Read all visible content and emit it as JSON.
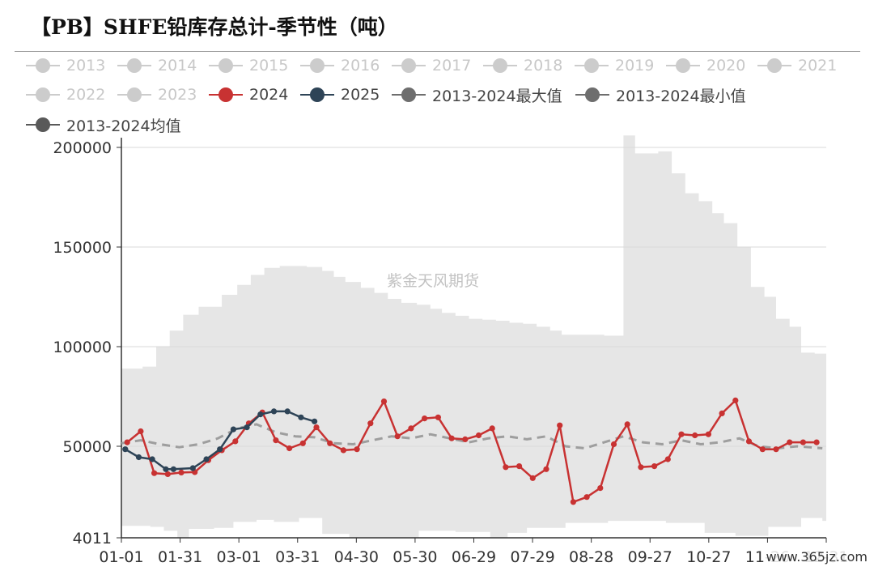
{
  "title": "【PB】SHFE铅库存总计-季节性（吨）",
  "watermark": "紫金天风期货",
  "site": "www.365jz.com",
  "chart_data": {
    "type": "line",
    "title": "【PB】SHFE铅库存总计-季节性（吨）",
    "xlabel": "",
    "ylabel": "",
    "x_tick_labels": [
      "01-01",
      "01-31",
      "03-01",
      "03-31",
      "04-30",
      "05-30",
      "06-29",
      "07-29",
      "08-28",
      "09-27",
      "10-27",
      "11-26",
      "12-31"
    ],
    "y_tick_labels": [
      "4011",
      "50000",
      "100000",
      "150000",
      "200000"
    ],
    "ylim": [
      4011,
      207000
    ],
    "xlim": [
      0,
      365
    ],
    "grid": true,
    "legend_position": "top",
    "legend": [
      {
        "name": "2013",
        "color": "#cccccc",
        "active": false
      },
      {
        "name": "2014",
        "color": "#cccccc",
        "active": false
      },
      {
        "name": "2015",
        "color": "#cccccc",
        "active": false
      },
      {
        "name": "2016",
        "color": "#cccccc",
        "active": false
      },
      {
        "name": "2017",
        "color": "#cccccc",
        "active": false
      },
      {
        "name": "2018",
        "color": "#cccccc",
        "active": false
      },
      {
        "name": "2019",
        "color": "#cccccc",
        "active": false
      },
      {
        "name": "2020",
        "color": "#cccccc",
        "active": false
      },
      {
        "name": "2021",
        "color": "#cccccc",
        "active": false
      },
      {
        "name": "2022",
        "color": "#cccccc",
        "active": false
      },
      {
        "name": "2023",
        "color": "#cccccc",
        "active": false
      },
      {
        "name": "2024",
        "color": "#c83232",
        "active": true
      },
      {
        "name": "2025",
        "color": "#2e4457",
        "active": true
      },
      {
        "name": "2013-2024最大值",
        "color": "#6e6e6e",
        "active": true
      },
      {
        "name": "2013-2024最小值",
        "color": "#6e6e6e",
        "active": true
      },
      {
        "name": "2013-2024均值",
        "color": "#595959",
        "active": true
      }
    ],
    "band": {
      "name": "2013-2024",
      "color": "#e6e6e6",
      "max": [
        [
          0,
          89000
        ],
        [
          11,
          90000
        ],
        [
          18,
          100000
        ],
        [
          25,
          108000
        ],
        [
          32,
          116000
        ],
        [
          40,
          120000
        ],
        [
          52,
          126000
        ],
        [
          60,
          131000
        ],
        [
          67,
          136000
        ],
        [
          74,
          139500
        ],
        [
          82,
          140500
        ],
        [
          96,
          140000
        ],
        [
          104,
          138000
        ],
        [
          110,
          135000
        ],
        [
          116,
          132500
        ],
        [
          124,
          129500
        ],
        [
          131,
          127000
        ],
        [
          138,
          124000
        ],
        [
          145,
          122000
        ],
        [
          153,
          121000
        ],
        [
          160,
          119000
        ],
        [
          166,
          117000
        ],
        [
          173,
          115500
        ],
        [
          180,
          114000
        ],
        [
          187,
          113500
        ],
        [
          194,
          113000
        ],
        [
          201,
          112000
        ],
        [
          208,
          111500
        ],
        [
          215,
          110000
        ],
        [
          222,
          108000
        ],
        [
          228,
          106000
        ],
        [
          250,
          105500
        ],
        [
          260,
          206000
        ],
        [
          266,
          197000
        ],
        [
          278,
          198000
        ],
        [
          285,
          187000
        ],
        [
          292,
          177000
        ],
        [
          299,
          173000
        ],
        [
          306,
          167000
        ],
        [
          312,
          162000
        ],
        [
          319,
          150000
        ],
        [
          326,
          130000
        ],
        [
          333,
          125000
        ],
        [
          339,
          114000
        ],
        [
          346,
          110000
        ],
        [
          352,
          97000
        ],
        [
          359,
          96500
        ],
        [
          363,
          96500
        ]
      ],
      "min": [
        [
          0,
          10000
        ],
        [
          15,
          9500
        ],
        [
          22,
          7500
        ],
        [
          29,
          4011
        ],
        [
          35,
          8500
        ],
        [
          48,
          9000
        ],
        [
          58,
          12000
        ],
        [
          70,
          13000
        ],
        [
          79,
          12000
        ],
        [
          92,
          14000
        ],
        [
          104,
          6000
        ],
        [
          118,
          3000
        ],
        [
          137,
          4000
        ],
        [
          154,
          7500
        ],
        [
          173,
          7000
        ],
        [
          191,
          4000
        ],
        [
          200,
          6500
        ],
        [
          210,
          9000
        ],
        [
          230,
          11500
        ],
        [
          252,
          12500
        ],
        [
          282,
          11500
        ],
        [
          302,
          6500
        ],
        [
          318,
          5000
        ],
        [
          335,
          9500
        ],
        [
          352,
          14000
        ],
        [
          363,
          12500
        ]
      ]
    },
    "series": [
      {
        "name": "2013-2024均值",
        "color": "#9e9e9e",
        "dashed": true,
        "points": [
          [
            0,
            51500
          ],
          [
            10,
            53000
          ],
          [
            20,
            51000
          ],
          [
            30,
            49500
          ],
          [
            40,
            51000
          ],
          [
            50,
            54000
          ],
          [
            60,
            59000
          ],
          [
            70,
            61000
          ],
          [
            80,
            57000
          ],
          [
            90,
            55000
          ],
          [
            100,
            54500
          ],
          [
            110,
            51500
          ],
          [
            120,
            51000
          ],
          [
            130,
            53000
          ],
          [
            140,
            55000
          ],
          [
            150,
            54000
          ],
          [
            160,
            56000
          ],
          [
            170,
            54000
          ],
          [
            180,
            52000
          ],
          [
            190,
            54000
          ],
          [
            200,
            55000
          ],
          [
            210,
            53500
          ],
          [
            220,
            55000
          ],
          [
            230,
            50000
          ],
          [
            240,
            49000
          ],
          [
            250,
            52000
          ],
          [
            260,
            55000
          ],
          [
            270,
            52000
          ],
          [
            280,
            51000
          ],
          [
            290,
            53000
          ],
          [
            300,
            51000
          ],
          [
            310,
            52000
          ],
          [
            320,
            54000
          ],
          [
            330,
            50000
          ],
          [
            340,
            49000
          ],
          [
            350,
            50000
          ],
          [
            363,
            49000
          ]
        ]
      },
      {
        "name": "2024",
        "color": "#c83232",
        "dashed": false,
        "points": [
          [
            3,
            52000
          ],
          [
            10,
            57500
          ],
          [
            17,
            36500
          ],
          [
            24,
            36000
          ],
          [
            31,
            36800
          ],
          [
            38,
            37000
          ],
          [
            45,
            43000
          ],
          [
            52,
            48000
          ],
          [
            59,
            52500
          ],
          [
            66,
            61500
          ],
          [
            73,
            67000
          ],
          [
            80,
            53000
          ],
          [
            87,
            49000
          ],
          [
            94,
            51500
          ],
          [
            101,
            59500
          ],
          [
            108,
            51500
          ],
          [
            115,
            48000
          ],
          [
            122,
            48500
          ],
          [
            129,
            61500
          ],
          [
            136,
            72500
          ],
          [
            143,
            55000
          ],
          [
            150,
            59000
          ],
          [
            157,
            64000
          ],
          [
            164,
            64500
          ],
          [
            171,
            54000
          ],
          [
            178,
            53500
          ],
          [
            185,
            55500
          ],
          [
            192,
            59000
          ],
          [
            199,
            39500
          ],
          [
            206,
            40000
          ],
          [
            213,
            34000
          ],
          [
            220,
            38500
          ],
          [
            227,
            60500
          ],
          [
            234,
            22000
          ],
          [
            241,
            24500
          ],
          [
            248,
            29000
          ],
          [
            255,
            51000
          ],
          [
            262,
            61000
          ],
          [
            269,
            39500
          ],
          [
            276,
            40000
          ],
          [
            283,
            43500
          ],
          [
            290,
            56000
          ],
          [
            297,
            55500
          ],
          [
            304,
            56000
          ],
          [
            311,
            66500
          ],
          [
            318,
            73000
          ],
          [
            325,
            52500
          ],
          [
            332,
            48500
          ],
          [
            339,
            48500
          ],
          [
            346,
            52000
          ],
          [
            353,
            52000
          ],
          [
            360,
            52000
          ]
        ]
      },
      {
        "name": "2025",
        "color": "#2e4457",
        "dashed": false,
        "points": [
          [
            2,
            48500
          ],
          [
            9,
            44500
          ],
          [
            16,
            43500
          ],
          [
            23,
            38500
          ],
          [
            27,
            38500
          ],
          [
            37,
            39000
          ],
          [
            44,
            43500
          ],
          [
            51,
            48500
          ],
          [
            58,
            58500
          ],
          [
            65,
            59500
          ],
          [
            72,
            66000
          ],
          [
            79,
            67500
          ],
          [
            86,
            67500
          ],
          [
            93,
            64500
          ],
          [
            100,
            62500
          ]
        ]
      }
    ]
  }
}
